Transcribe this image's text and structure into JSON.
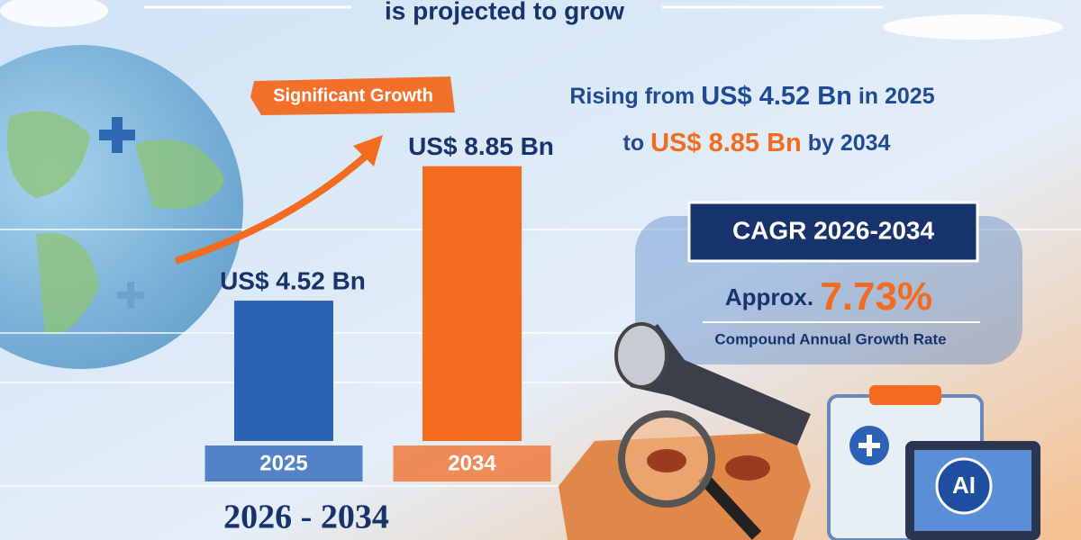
{
  "chart_data": {
    "type": "bar",
    "title": "is projected to grow",
    "categories": [
      "2025",
      "2034"
    ],
    "values": [
      4.52,
      8.85
    ],
    "value_labels": [
      "US$ 4.52 Bn",
      "US$ 8.85 Bn"
    ],
    "colors": [
      "#2c62b6",
      "#f26b1f"
    ],
    "badge": "Significant Growth",
    "period": "2026 - 2034"
  },
  "callout": {
    "line1": [
      "Rising from",
      "US$ 4.52 Bn",
      "in 2025"
    ],
    "line2": [
      "to",
      "US$ 8.85 Bn",
      "by 2034"
    ]
  },
  "cagr": {
    "title": "CAGR 2026-2034",
    "prefix": "Approx.",
    "rate": "7.73%",
    "caption": "Compound Annual Growth Rate"
  },
  "icon_label": "AI"
}
